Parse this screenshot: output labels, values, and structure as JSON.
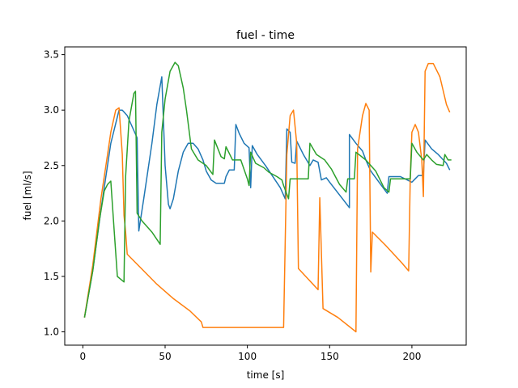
{
  "chart_data": {
    "type": "line",
    "title": "fuel - time",
    "xlabel": "time [s]",
    "ylabel": "fuel [ml/s]",
    "xlim": [
      -11,
      233
    ],
    "ylim": [
      0.88,
      3.57
    ],
    "xticks": [
      0,
      50,
      100,
      150,
      200
    ],
    "yticks": [
      1.0,
      1.5,
      2.0,
      2.5,
      3.0,
      3.5
    ],
    "ytick_labels": [
      "1.0",
      "1.5",
      "2.0",
      "2.5",
      "3.0",
      "3.5"
    ],
    "grid": false,
    "legend": "none",
    "series": [
      {
        "color": "#1f77b4",
        "points": [
          [
            1,
            1.13
          ],
          [
            6,
            1.55
          ],
          [
            11,
            2.1
          ],
          [
            17,
            2.7
          ],
          [
            22,
            3.0
          ],
          [
            24,
            3.0
          ],
          [
            27,
            2.95
          ],
          [
            33,
            2.75
          ],
          [
            34,
            1.91
          ],
          [
            37,
            2.2
          ],
          [
            42,
            2.7
          ],
          [
            45,
            3.05
          ],
          [
            48,
            3.3
          ],
          [
            50,
            2.5
          ],
          [
            52,
            2.15
          ],
          [
            53,
            2.11
          ],
          [
            55,
            2.2
          ],
          [
            58,
            2.45
          ],
          [
            61,
            2.62
          ],
          [
            64,
            2.7
          ],
          [
            67,
            2.7
          ],
          [
            70,
            2.65
          ],
          [
            73,
            2.55
          ],
          [
            75,
            2.45
          ],
          [
            78,
            2.37
          ],
          [
            81,
            2.34
          ],
          [
            86,
            2.34
          ],
          [
            87,
            2.4
          ],
          [
            89,
            2.46
          ],
          [
            92,
            2.46
          ],
          [
            93,
            2.87
          ],
          [
            95,
            2.79
          ],
          [
            98,
            2.7
          ],
          [
            101,
            2.66
          ],
          [
            102,
            2.3
          ],
          [
            103,
            2.68
          ],
          [
            106,
            2.6
          ],
          [
            111,
            2.5
          ],
          [
            120,
            2.3
          ],
          [
            123,
            2.2
          ],
          [
            124,
            2.83
          ],
          [
            126,
            2.8
          ],
          [
            127,
            2.53
          ],
          [
            129,
            2.52
          ],
          [
            130,
            2.72
          ],
          [
            134,
            2.6
          ],
          [
            138,
            2.5
          ],
          [
            140,
            2.55
          ],
          [
            143,
            2.53
          ],
          [
            145,
            2.37
          ],
          [
            148,
            2.39
          ],
          [
            150,
            2.35
          ],
          [
            162,
            2.12
          ],
          [
            162,
            2.78
          ],
          [
            166,
            2.7
          ],
          [
            170,
            2.63
          ],
          [
            172,
            2.55
          ],
          [
            175,
            2.45
          ],
          [
            180,
            2.35
          ],
          [
            185,
            2.25
          ],
          [
            186,
            2.4
          ],
          [
            193,
            2.4
          ],
          [
            200,
            2.35
          ],
          [
            202,
            2.38
          ],
          [
            204,
            2.41
          ],
          [
            207,
            2.41
          ],
          [
            208,
            2.73
          ],
          [
            212,
            2.65
          ],
          [
            216,
            2.6
          ],
          [
            221,
            2.52
          ],
          [
            223,
            2.46
          ]
        ]
      },
      {
        "color": "#ff7f0e",
        "points": [
          [
            1,
            1.13
          ],
          [
            6,
            1.6
          ],
          [
            11,
            2.2
          ],
          [
            15,
            2.6
          ],
          [
            17,
            2.8
          ],
          [
            20,
            3.0
          ],
          [
            22,
            3.02
          ],
          [
            24,
            2.6
          ],
          [
            25,
            2.05
          ],
          [
            26,
            1.9
          ],
          [
            27,
            1.7
          ],
          [
            35,
            1.58
          ],
          [
            45,
            1.43
          ],
          [
            55,
            1.3
          ],
          [
            65,
            1.19
          ],
          [
            72,
            1.09
          ],
          [
            73,
            1.04
          ],
          [
            100,
            1.04
          ],
          [
            122,
            1.04
          ],
          [
            124,
            2.6
          ],
          [
            126,
            2.95
          ],
          [
            128,
            3.0
          ],
          [
            130,
            2.7
          ],
          [
            131,
            1.57
          ],
          [
            143,
            1.38
          ],
          [
            144,
            2.21
          ],
          [
            146,
            1.21
          ],
          [
            155,
            1.13
          ],
          [
            166,
            1.0
          ],
          [
            167,
            2.65
          ],
          [
            170,
            2.95
          ],
          [
            172,
            3.06
          ],
          [
            174,
            3.0
          ],
          [
            175,
            1.54
          ],
          [
            176,
            1.9
          ],
          [
            184,
            1.78
          ],
          [
            194,
            1.62
          ],
          [
            198,
            1.55
          ],
          [
            199,
            2.4
          ],
          [
            200,
            2.8
          ],
          [
            202,
            2.87
          ],
          [
            204,
            2.8
          ],
          [
            206,
            2.55
          ],
          [
            207,
            2.22
          ],
          [
            208,
            3.35
          ],
          [
            210,
            3.42
          ],
          [
            213,
            3.42
          ],
          [
            217,
            3.3
          ],
          [
            221,
            3.05
          ],
          [
            223,
            2.98
          ]
        ]
      },
      {
        "color": "#2ca02c",
        "points": [
          [
            1,
            1.13
          ],
          [
            6,
            1.55
          ],
          [
            10,
            2.0
          ],
          [
            13,
            2.27
          ],
          [
            15,
            2.33
          ],
          [
            17,
            2.36
          ],
          [
            19,
            1.92
          ],
          [
            21,
            1.5
          ],
          [
            25,
            1.45
          ],
          [
            26,
            2.4
          ],
          [
            28,
            2.9
          ],
          [
            31,
            3.15
          ],
          [
            32,
            3.17
          ],
          [
            33,
            2.07
          ],
          [
            36,
            2.0
          ],
          [
            42,
            1.9
          ],
          [
            47,
            1.79
          ],
          [
            48,
            2.8
          ],
          [
            50,
            3.1
          ],
          [
            53,
            3.35
          ],
          [
            56,
            3.43
          ],
          [
            58,
            3.4
          ],
          [
            61,
            3.2
          ],
          [
            63,
            3.0
          ],
          [
            66,
            2.65
          ],
          [
            70,
            2.55
          ],
          [
            75,
            2.5
          ],
          [
            79,
            2.42
          ],
          [
            80,
            2.73
          ],
          [
            84,
            2.58
          ],
          [
            86,
            2.56
          ],
          [
            87,
            2.67
          ],
          [
            91,
            2.55
          ],
          [
            96,
            2.55
          ],
          [
            100,
            2.38
          ],
          [
            101,
            2.32
          ],
          [
            102,
            2.62
          ],
          [
            105,
            2.52
          ],
          [
            110,
            2.48
          ],
          [
            113,
            2.44
          ],
          [
            118,
            2.4
          ],
          [
            121,
            2.37
          ],
          [
            122,
            2.32
          ],
          [
            125,
            2.2
          ],
          [
            126,
            2.38
          ],
          [
            137,
            2.38
          ],
          [
            138,
            2.7
          ],
          [
            142,
            2.6
          ],
          [
            147,
            2.55
          ],
          [
            151,
            2.47
          ],
          [
            156,
            2.33
          ],
          [
            160,
            2.26
          ],
          [
            161,
            2.38
          ],
          [
            165,
            2.38
          ],
          [
            166,
            2.62
          ],
          [
            172,
            2.55
          ],
          [
            178,
            2.45
          ],
          [
            183,
            2.3
          ],
          [
            186,
            2.26
          ],
          [
            187,
            2.38
          ],
          [
            199,
            2.38
          ],
          [
            200,
            2.7
          ],
          [
            203,
            2.62
          ],
          [
            207,
            2.55
          ],
          [
            209,
            2.6
          ],
          [
            212,
            2.55
          ],
          [
            215,
            2.51
          ],
          [
            219,
            2.5
          ],
          [
            220,
            2.6
          ],
          [
            222,
            2.55
          ],
          [
            224,
            2.55
          ]
        ]
      }
    ]
  }
}
